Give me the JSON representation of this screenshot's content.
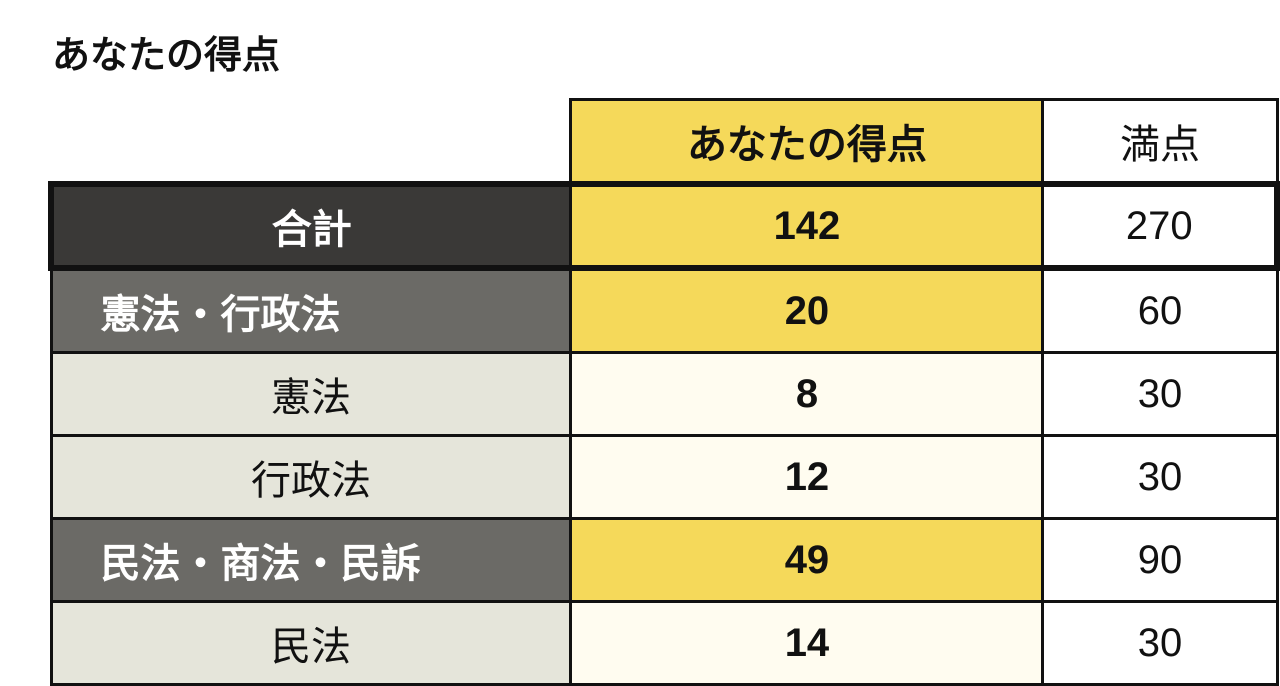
{
  "title": "あなたの得点",
  "table": {
    "headers": {
      "score": "あなたの得点",
      "max": "満点"
    },
    "total": {
      "label": "合計",
      "score": "142",
      "max": "270"
    },
    "rows": [
      {
        "type": "group",
        "label": "憲法・行政法",
        "score": "20",
        "max": "60"
      },
      {
        "type": "sub",
        "label": "憲法",
        "score": "8",
        "max": "30"
      },
      {
        "type": "sub",
        "label": "行政法",
        "score": "12",
        "max": "30"
      },
      {
        "type": "group",
        "label": "民法・商法・民訴",
        "score": "49",
        "max": "90"
      },
      {
        "type": "sub",
        "label": "民法",
        "score": "14",
        "max": "30"
      }
    ]
  },
  "colors": {
    "dark": "#3a3937",
    "group": "#6b6a66",
    "sub": "#e5e5da",
    "accent": "#f5d95a",
    "subAccent": "#fffcf0"
  }
}
